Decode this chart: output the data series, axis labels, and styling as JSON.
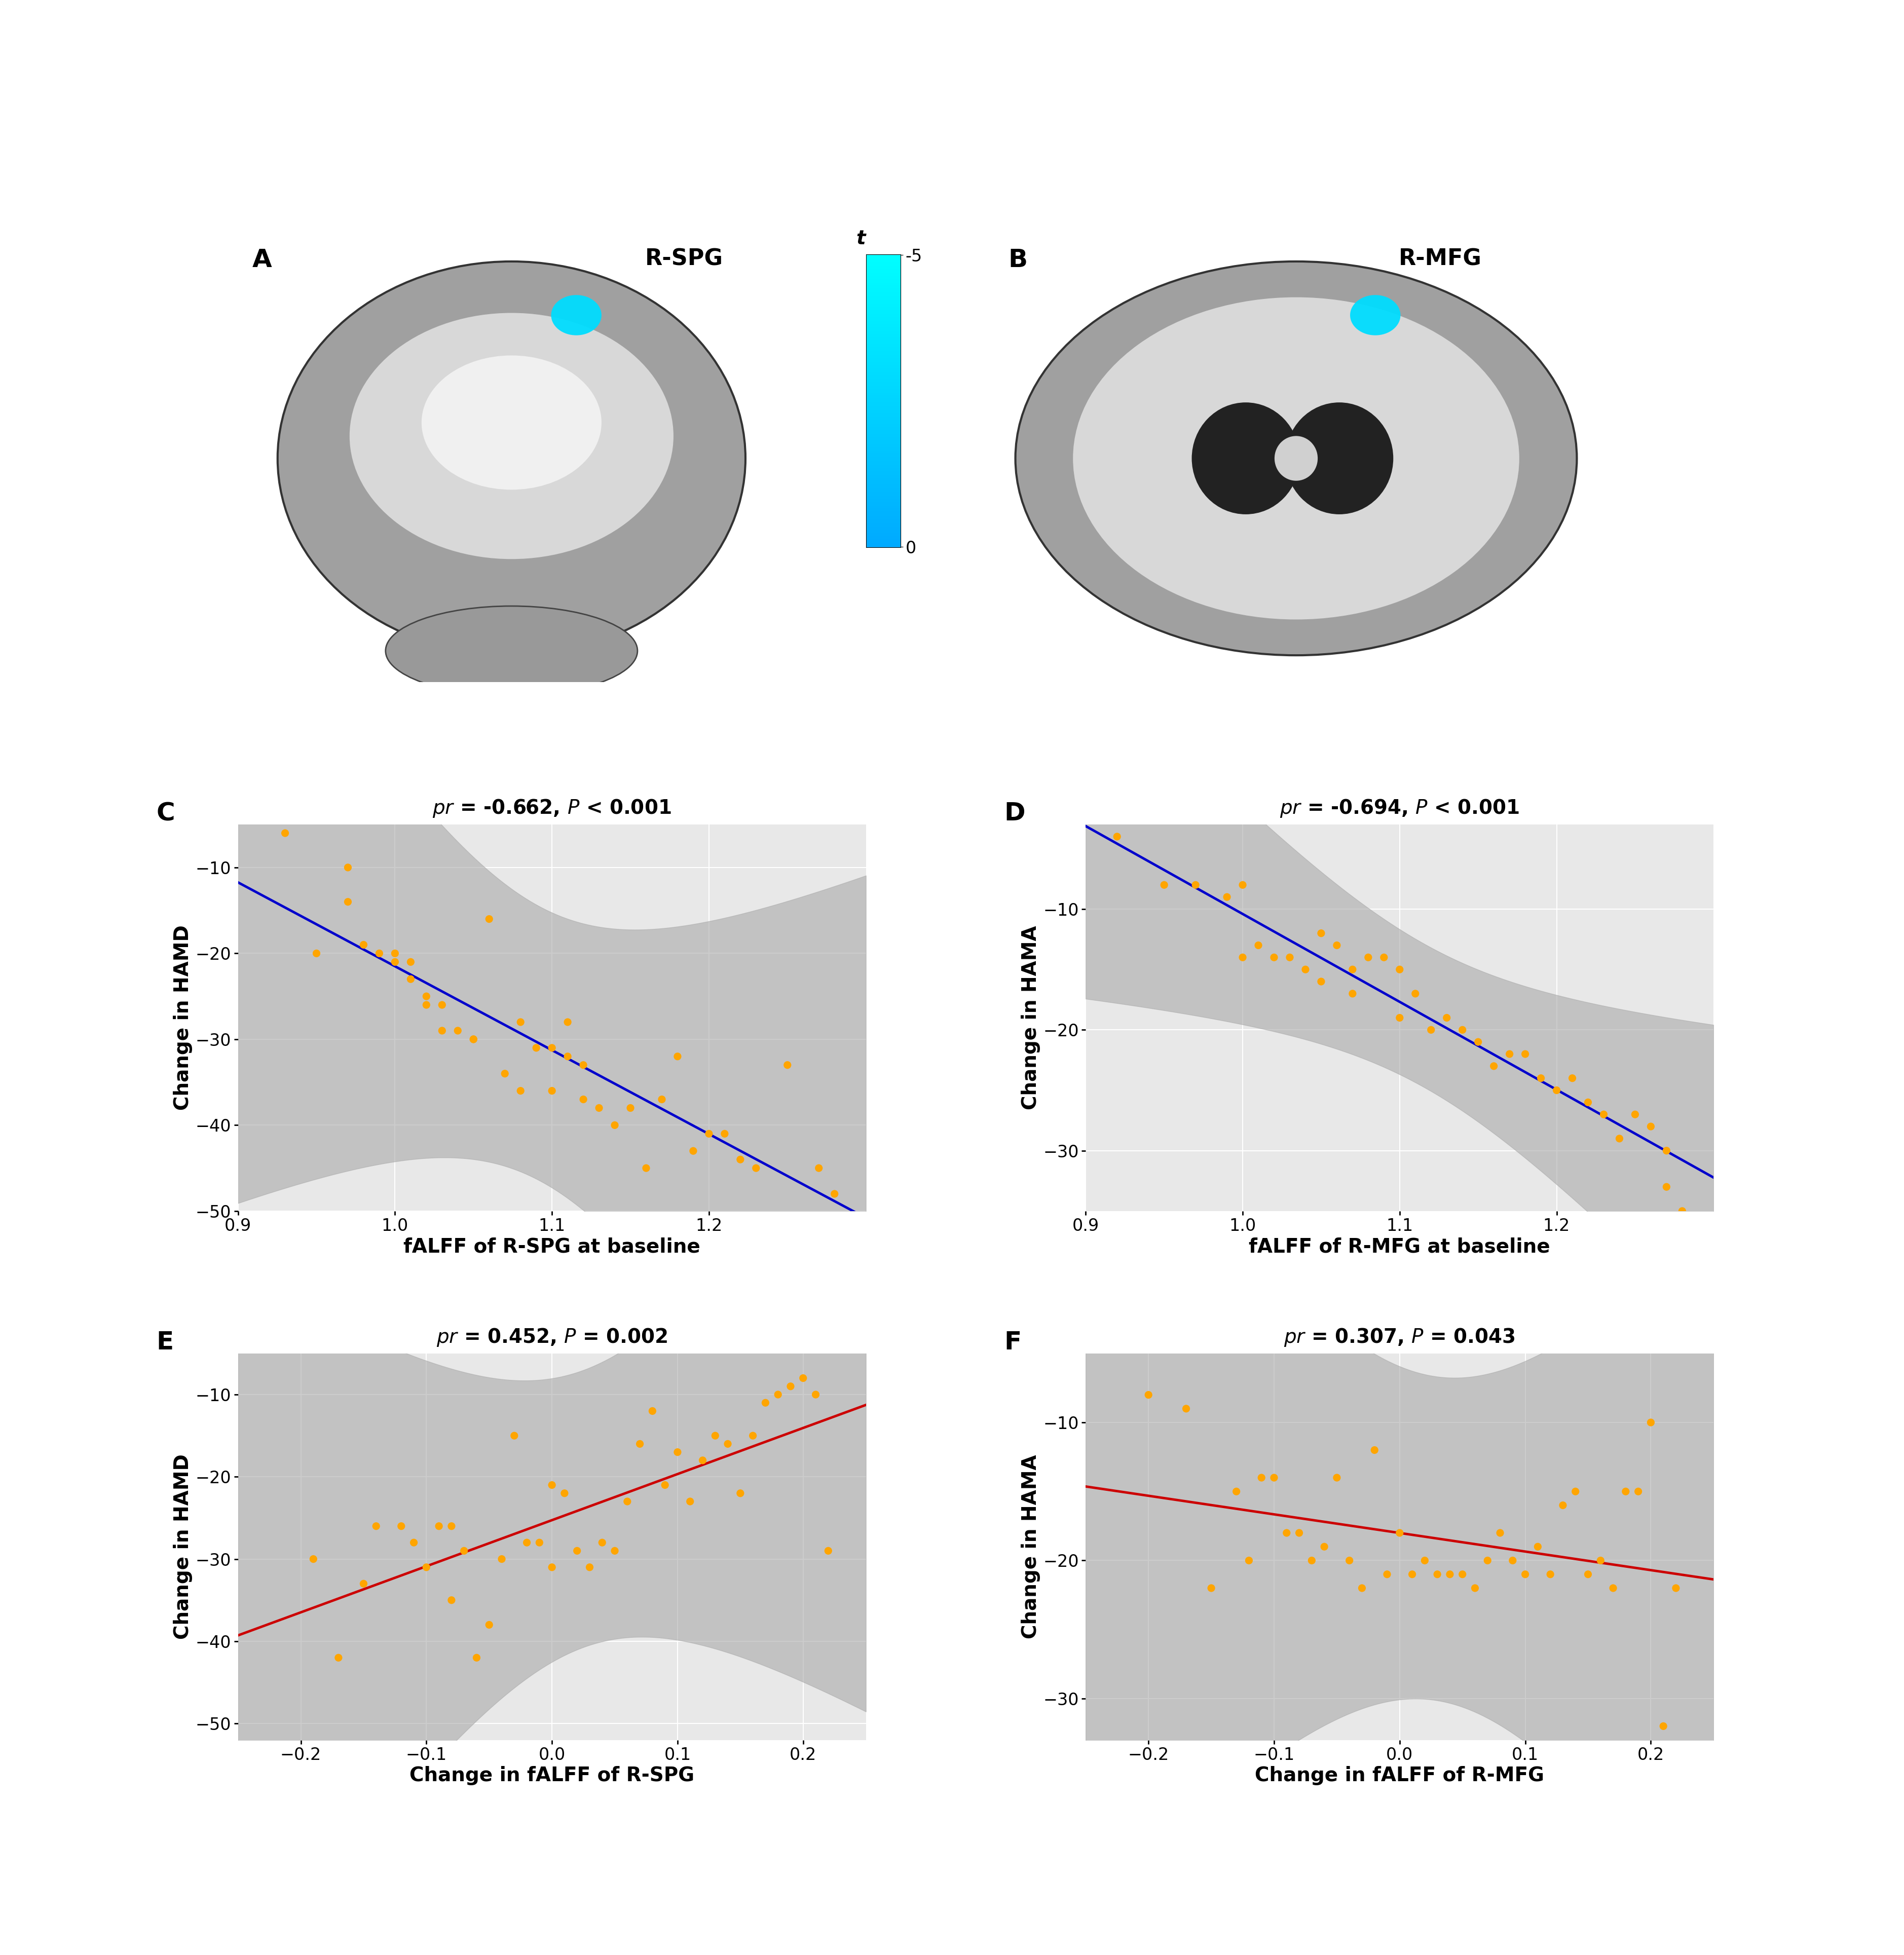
{
  "panel_A_title": "R-SPG",
  "panel_B_title": "R-MFG",
  "colorbar_ticks": [
    -5,
    0
  ],
  "colorbar_label": "t",
  "panel_C_title": "pr = -0.662, P < 0.001",
  "panel_D_title": "pr = -0.694, P < 0.001",
  "panel_E_title": "pr = 0.452, P = 0.002",
  "panel_F_title": "pr = 0.307, P = 0.043",
  "panel_C_xlabel": "fALFF of R-SPG at baseline",
  "panel_C_ylabel": "Change in HAMD",
  "panel_D_xlabel": "fALFF of R-MFG at baseline",
  "panel_D_ylabel": "Change in HAMA",
  "panel_E_xlabel": "Change in fALFF of R-SPG",
  "panel_E_ylabel": "Change in HAMD",
  "panel_F_xlabel": "Change in fALFF of R-MFG",
  "panel_F_ylabel": "Change in HAMA",
  "C_xlim": [
    0.9,
    1.3
  ],
  "C_ylim": [
    -50,
    -5
  ],
  "D_xlim": [
    0.9,
    1.3
  ],
  "D_ylim": [
    -35,
    -3
  ],
  "E_xlim": [
    -0.25,
    0.25
  ],
  "E_ylim": [
    -52,
    -5
  ],
  "F_xlim": [
    -0.25,
    0.25
  ],
  "F_ylim": [
    -33,
    -5
  ],
  "C_xticks": [
    0.9,
    1.0,
    1.1,
    1.2
  ],
  "C_yticks": [
    -10,
    -20,
    -30,
    -40,
    -50
  ],
  "D_xticks": [
    0.9,
    1.0,
    1.1,
    1.2
  ],
  "D_yticks": [
    -10,
    -20,
    -30
  ],
  "E_xticks": [
    -0.2,
    -0.1,
    0.0,
    0.1,
    0.2
  ],
  "E_yticks": [
    -10,
    -20,
    -30,
    -40,
    -50
  ],
  "F_xticks": [
    -0.2,
    -0.1,
    0.0,
    0.1,
    0.2
  ],
  "F_yticks": [
    -10,
    -20,
    -30
  ],
  "dot_color": "#FFA500",
  "line_color_neg": "#0000CC",
  "line_color_pos": "#CC0000",
  "ci_color": "#AAAAAA",
  "bg_color": "#E8E8E8",
  "grid_color": "#FFFFFF",
  "scatter_C_x": [
    0.93,
    0.95,
    0.97,
    0.97,
    0.98,
    0.99,
    1.0,
    1.0,
    1.01,
    1.01,
    1.02,
    1.02,
    1.03,
    1.03,
    1.04,
    1.05,
    1.05,
    1.06,
    1.07,
    1.08,
    1.08,
    1.09,
    1.1,
    1.1,
    1.11,
    1.11,
    1.12,
    1.12,
    1.13,
    1.14,
    1.15,
    1.16,
    1.17,
    1.18,
    1.19,
    1.2,
    1.21,
    1.22,
    1.23,
    1.25,
    1.27,
    1.28
  ],
  "scatter_C_y": [
    -6,
    -20,
    -10,
    -14,
    -19,
    -20,
    -21,
    -20,
    -21,
    -23,
    -26,
    -25,
    -26,
    -29,
    -29,
    -30,
    -30,
    -16,
    -34,
    -36,
    -28,
    -31,
    -36,
    -31,
    -28,
    -32,
    -33,
    -37,
    -38,
    -40,
    -38,
    -45,
    -37,
    -32,
    -43,
    -41,
    -41,
    -44,
    -45,
    -33,
    -45,
    -48
  ],
  "scatter_D_x": [
    0.92,
    0.95,
    0.97,
    0.99,
    1.0,
    1.0,
    1.01,
    1.02,
    1.03,
    1.04,
    1.05,
    1.05,
    1.06,
    1.07,
    1.07,
    1.08,
    1.09,
    1.1,
    1.1,
    1.11,
    1.12,
    1.13,
    1.14,
    1.15,
    1.16,
    1.17,
    1.18,
    1.19,
    1.2,
    1.21,
    1.22,
    1.23,
    1.24,
    1.25,
    1.26,
    1.27,
    1.27,
    1.28
  ],
  "scatter_D_y": [
    -4,
    -8,
    -8,
    -9,
    -8,
    -14,
    -13,
    -14,
    -14,
    -15,
    -12,
    -16,
    -13,
    -15,
    -17,
    -14,
    -14,
    -15,
    -19,
    -17,
    -20,
    -19,
    -20,
    -21,
    -23,
    -22,
    -22,
    -24,
    -25,
    -24,
    -26,
    -27,
    -29,
    -27,
    -28,
    -30,
    -33,
    -35
  ],
  "scatter_E_x": [
    -0.19,
    -0.17,
    -0.15,
    -0.14,
    -0.12,
    -0.11,
    -0.1,
    -0.09,
    -0.08,
    -0.08,
    -0.07,
    -0.06,
    -0.05,
    -0.04,
    -0.03,
    -0.02,
    -0.01,
    0.0,
    0.0,
    0.01,
    0.02,
    0.03,
    0.04,
    0.05,
    0.06,
    0.07,
    0.08,
    0.09,
    0.1,
    0.11,
    0.12,
    0.13,
    0.14,
    0.15,
    0.16,
    0.17,
    0.18,
    0.19,
    0.2,
    0.21,
    0.22
  ],
  "scatter_E_y": [
    -30,
    -42,
    -33,
    -26,
    -26,
    -28,
    -31,
    -26,
    -26,
    -35,
    -29,
    -42,
    -38,
    -30,
    -15,
    -28,
    -28,
    -31,
    -21,
    -22,
    -29,
    -31,
    -28,
    -29,
    -23,
    -16,
    -12,
    -21,
    -17,
    -23,
    -18,
    -15,
    -16,
    -22,
    -15,
    -11,
    -10,
    -9,
    -8,
    -10,
    -29
  ],
  "scatter_F_x": [
    -0.2,
    -0.17,
    -0.15,
    -0.13,
    -0.12,
    -0.11,
    -0.1,
    -0.09,
    -0.08,
    -0.07,
    -0.06,
    -0.05,
    -0.04,
    -0.03,
    -0.02,
    -0.01,
    0.0,
    0.01,
    0.02,
    0.03,
    0.04,
    0.05,
    0.06,
    0.07,
    0.08,
    0.09,
    0.1,
    0.11,
    0.12,
    0.13,
    0.14,
    0.15,
    0.16,
    0.17,
    0.18,
    0.19,
    0.2,
    0.21,
    0.22
  ],
  "scatter_F_y": [
    -8,
    -9,
    -22,
    -15,
    -20,
    -14,
    -14,
    -18,
    -18,
    -20,
    -19,
    -14,
    -20,
    -22,
    -12,
    -21,
    -18,
    -21,
    -20,
    -21,
    -21,
    -21,
    -22,
    -20,
    -18,
    -20,
    -21,
    -19,
    -21,
    -16,
    -15,
    -21,
    -20,
    -22,
    -15,
    -15,
    -10,
    -32,
    -22
  ],
  "label_fontsize": 28,
  "tick_fontsize": 24,
  "title_fontsize": 28,
  "panel_label_fontsize": 36,
  "dot_size": 120
}
